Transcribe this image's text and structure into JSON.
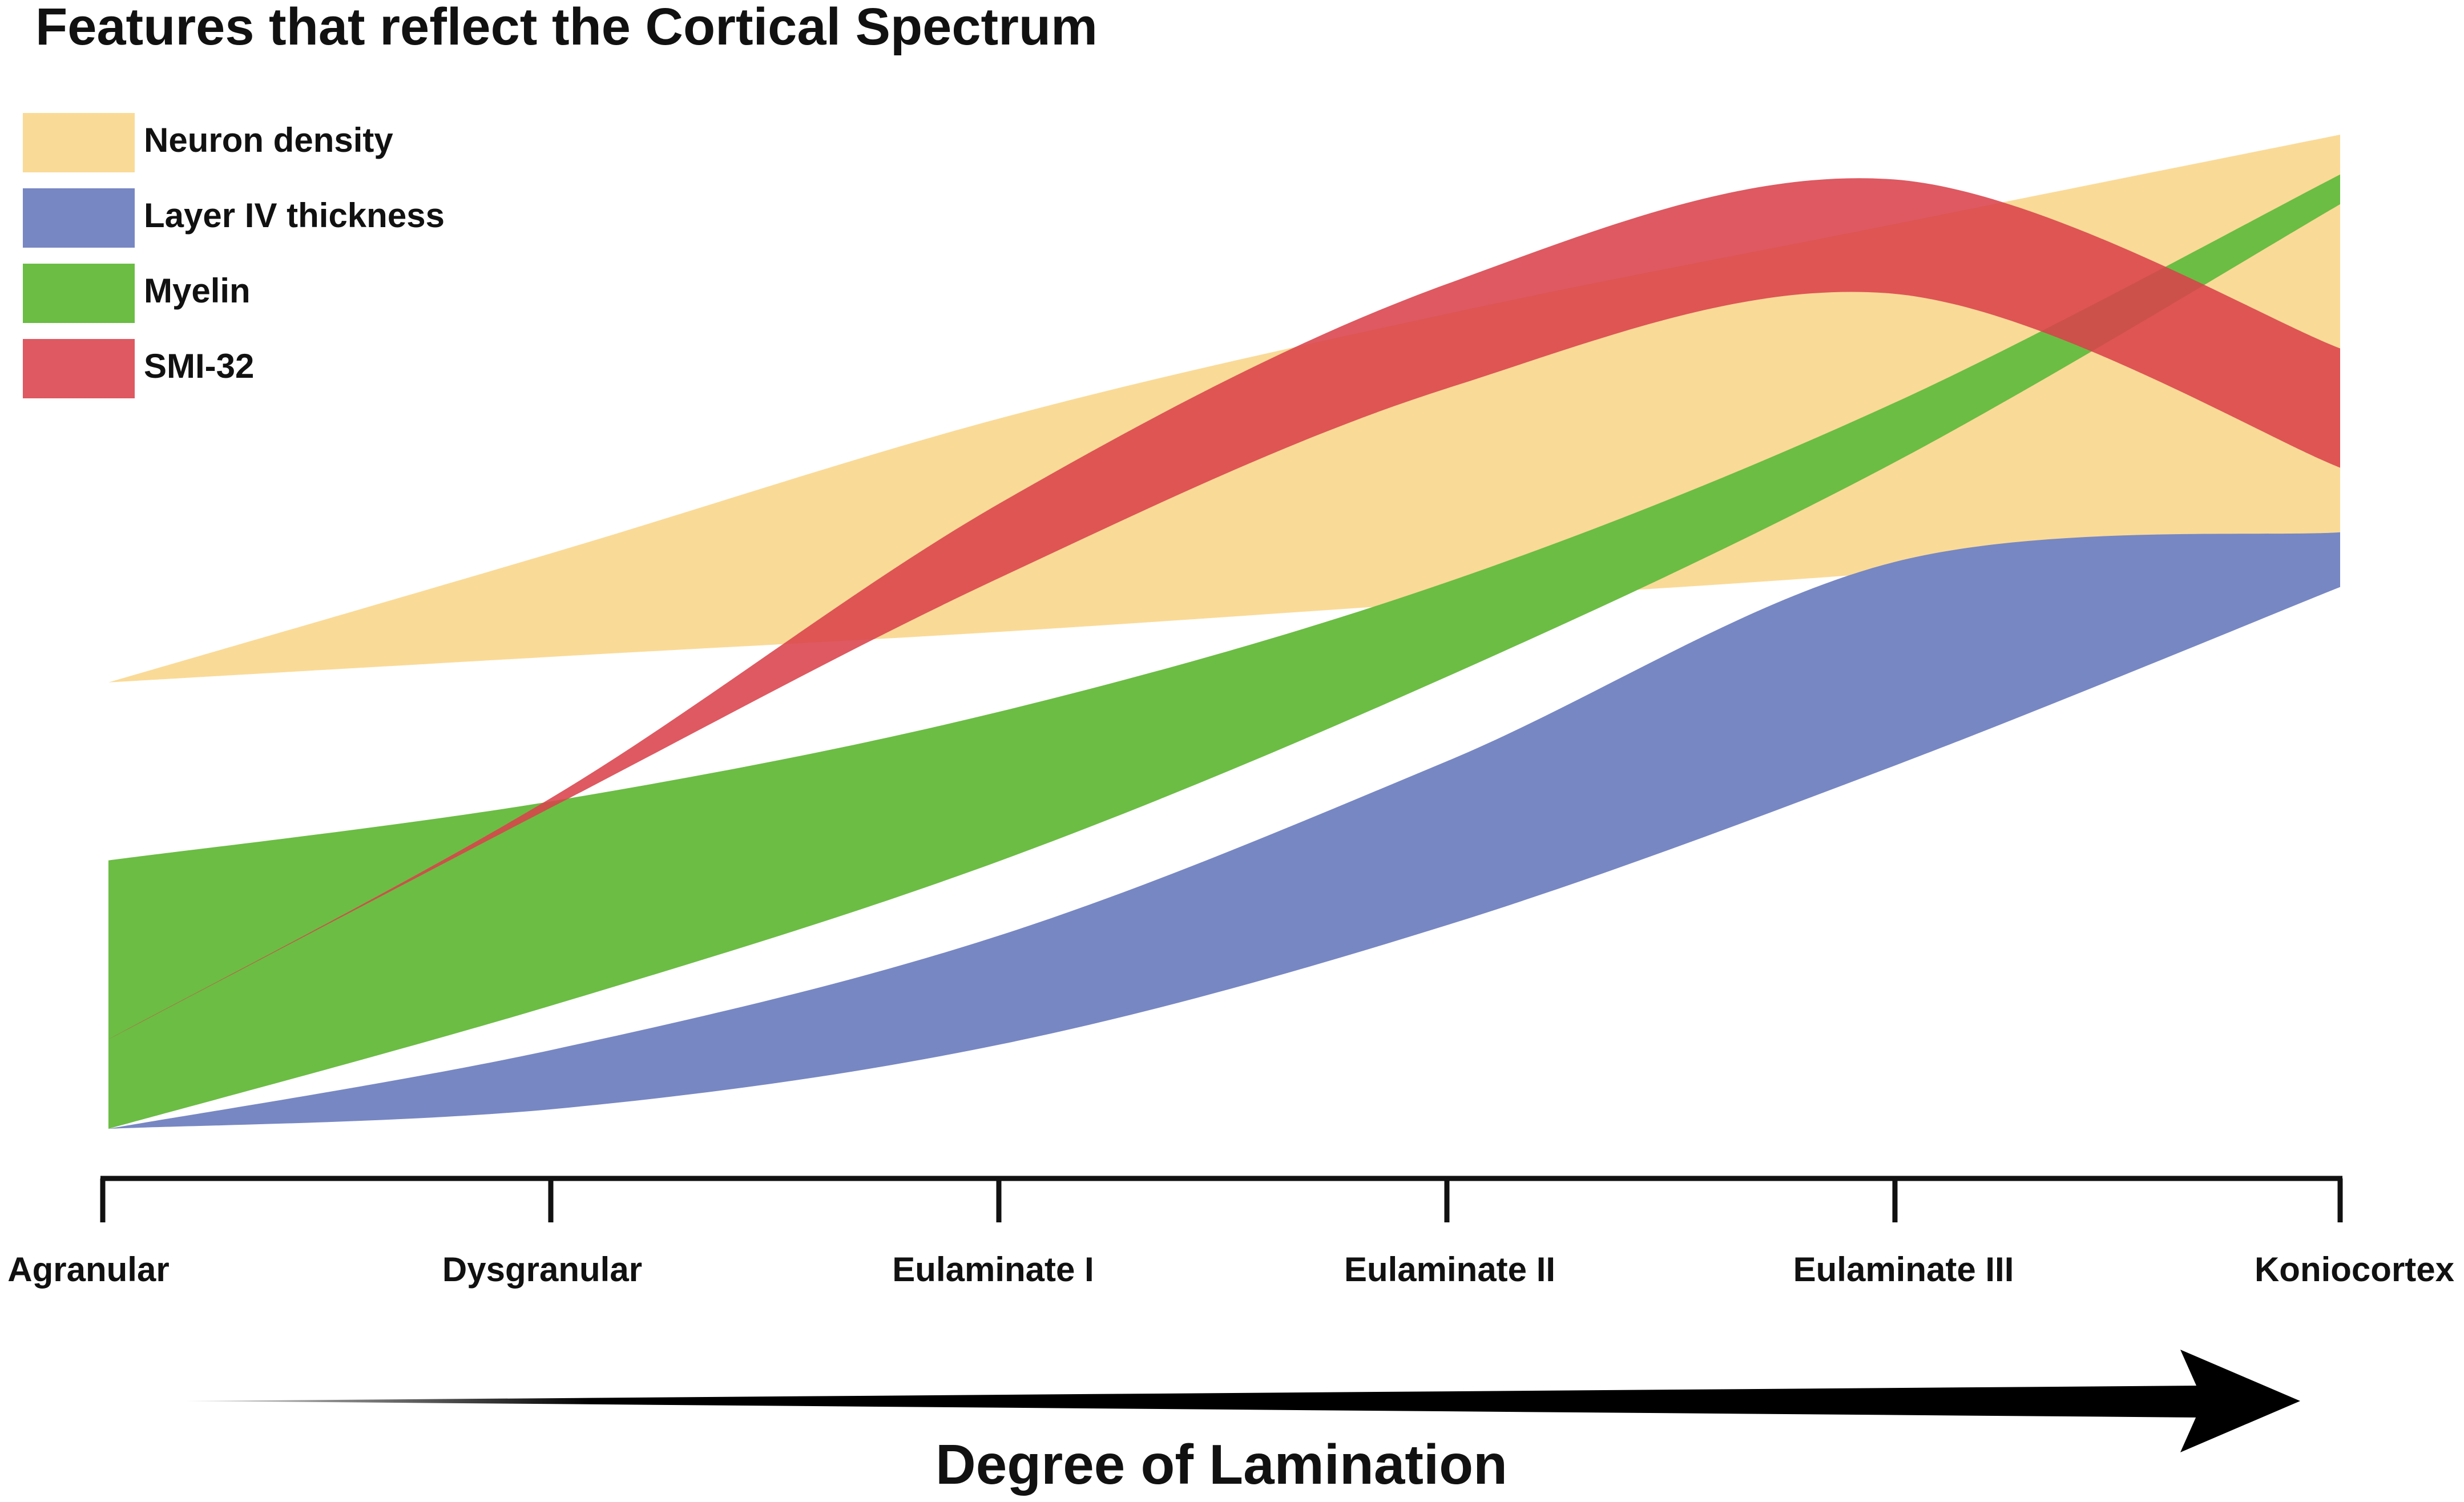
{
  "chart_data": {
    "type": "area",
    "title": "Features that reflect the Cortical Spectrum",
    "xlabel": "Degree of Lamination",
    "ylabel": "",
    "categories": [
      "Agranular",
      "Dysgranular",
      "Eulaminate I",
      "Eulaminate II",
      "Eulaminate III",
      "Koniocortex"
    ],
    "ylim": [
      0,
      100
    ],
    "grid": false,
    "legend_position": "top-left",
    "series": [
      {
        "name": "Neuron density",
        "color": "#f9d485",
        "opacity": 0.85,
        "upper": [
          44.9,
          58.0,
          71.5,
          82.0,
          91.0,
          100.0
        ],
        "lower": [
          44.9,
          47.5,
          50.0,
          53.0,
          56.0,
          60.0
        ]
      },
      {
        "name": "Layer IV thickness",
        "color": "#7787c3",
        "opacity": 1.0,
        "upper": [
          0.0,
          8.0,
          19.5,
          37.0,
          57.0,
          60.0
        ],
        "lower": [
          0.0,
          2.0,
          8.5,
          20.5,
          36.5,
          54.5
        ]
      },
      {
        "name": "Myelin",
        "color": "#6bbd44",
        "opacity": 1.0,
        "upper": [
          27.0,
          33.0,
          42.0,
          55.0,
          73.0,
          96.0
        ],
        "lower": [
          0.0,
          12.5,
          27.0,
          45.5,
          67.0,
          93.0
        ]
      },
      {
        "name": "SMI-32",
        "color": "#d9424b",
        "opacity": 0.88,
        "upper": [
          9.0,
          33.5,
          63.0,
          85.0,
          95.5,
          78.5
        ],
        "lower": [
          9.0,
          32.5,
          55.5,
          74.5,
          84.0,
          66.5
        ]
      }
    ]
  }
}
